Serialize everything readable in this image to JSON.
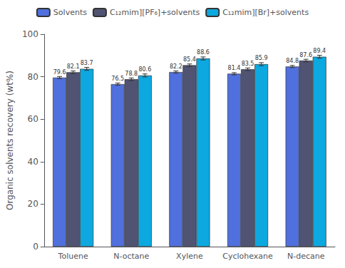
{
  "chart_data": {
    "type": "bar",
    "categories": [
      "Toluene",
      "N-octane",
      "Xylene",
      "Cyclohexane",
      "N-decane"
    ],
    "series": [
      {
        "name": "Solvents",
        "values": [
          79.6,
          76.5,
          82.2,
          81.4,
          84.8
        ],
        "errors": [
          0.5,
          0.5,
          0.5,
          0.5,
          0.5
        ]
      },
      {
        "name": "C₁₂mim][PF₆]+solvents",
        "values": [
          82.1,
          78.8,
          85.4,
          83.5,
          87.6
        ],
        "errors": [
          0.6,
          0.6,
          0.6,
          0.6,
          0.6
        ]
      },
      {
        "name": "C₁₂mim][Br]+solvents",
        "values": [
          83.7,
          80.6,
          88.6,
          85.9,
          89.4
        ],
        "errors": [
          0.7,
          0.7,
          0.7,
          0.7,
          0.7
        ]
      }
    ],
    "ylabel": "Organic solvents recovery (wt%)",
    "ylim": [
      0,
      100
    ],
    "yticks": [
      0,
      20,
      40,
      60,
      80,
      100
    ],
    "legend": "top",
    "data_labels": true,
    "grid": false
  }
}
